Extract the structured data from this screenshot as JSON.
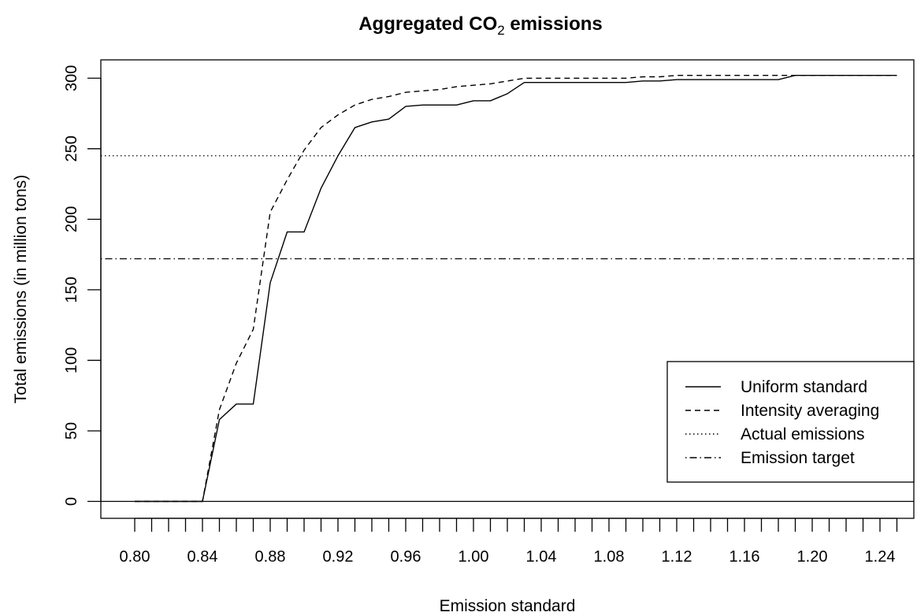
{
  "chart_data": {
    "type": "line",
    "title": "Aggregated CO",
    "title_subscript": "2",
    "title_suffix": " emissions",
    "xlabel": "Emission standard",
    "ylabel": "Total emissions (in million tons)",
    "xlim": [
      0.78,
      1.26
    ],
    "ylim": [
      -12,
      313
    ],
    "x_ticks_minor": [
      0.8,
      0.81,
      0.82,
      0.83,
      0.84,
      0.85,
      0.86,
      0.87,
      0.88,
      0.89,
      0.9,
      0.91,
      0.92,
      0.93,
      0.94,
      0.95,
      0.96,
      0.97,
      0.98,
      0.99,
      1.0,
      1.01,
      1.02,
      1.03,
      1.04,
      1.05,
      1.06,
      1.07,
      1.08,
      1.09,
      1.1,
      1.11,
      1.12,
      1.13,
      1.14,
      1.15,
      1.16,
      1.17,
      1.18,
      1.19,
      1.2,
      1.21,
      1.22,
      1.23,
      1.24,
      1.25
    ],
    "x_tick_labels": [
      "0.80",
      "0.84",
      "0.88",
      "0.92",
      "0.96",
      "1.00",
      "1.04",
      "1.08",
      "1.12",
      "1.16",
      "1.20",
      "1.24"
    ],
    "y_tick_labels": [
      "0",
      "50",
      "100",
      "150",
      "200",
      "250",
      "300"
    ],
    "grid": false,
    "legend_position": "bottom-right",
    "x": [
      0.8,
      0.81,
      0.82,
      0.83,
      0.84,
      0.85,
      0.86,
      0.87,
      0.88,
      0.89,
      0.9,
      0.91,
      0.92,
      0.93,
      0.94,
      0.95,
      0.96,
      0.97,
      0.98,
      0.99,
      1.0,
      1.01,
      1.02,
      1.03,
      1.04,
      1.05,
      1.06,
      1.07,
      1.08,
      1.09,
      1.1,
      1.11,
      1.12,
      1.13,
      1.14,
      1.15,
      1.16,
      1.17,
      1.18,
      1.19,
      1.2,
      1.21,
      1.22,
      1.23,
      1.24,
      1.25
    ],
    "series": [
      {
        "name": "Uniform standard",
        "dash": "solid",
        "values": [
          0,
          0,
          0,
          0,
          0,
          58,
          69,
          69,
          155,
          191,
          191,
          222,
          245,
          265,
          269,
          271,
          280,
          281,
          281,
          281,
          284,
          284,
          289,
          297,
          297,
          297,
          297,
          297,
          297,
          297,
          298,
          298,
          299,
          299,
          299,
          299,
          299,
          299,
          299,
          302,
          302,
          302,
          302,
          302,
          302,
          302
        ]
      },
      {
        "name": "Intensity averaging",
        "dash": "dashed",
        "values": [
          0,
          0,
          0,
          0,
          0,
          65,
          98,
          122,
          205,
          228,
          249,
          265,
          274,
          281,
          285,
          287,
          290,
          291,
          292,
          294,
          295,
          296,
          298,
          300,
          300,
          300,
          300,
          300,
          300,
          300,
          301,
          301,
          302,
          302,
          302,
          302,
          302,
          302,
          302,
          302,
          302,
          302,
          302,
          302,
          302,
          302
        ]
      }
    ],
    "reference_lines": [
      {
        "name": "Actual emissions",
        "dash": "dotted",
        "y": 245
      },
      {
        "name": "Emission target",
        "dash": "dashdot",
        "y": 172
      },
      {
        "name": "",
        "dash": "solid",
        "y": 0
      }
    ]
  }
}
